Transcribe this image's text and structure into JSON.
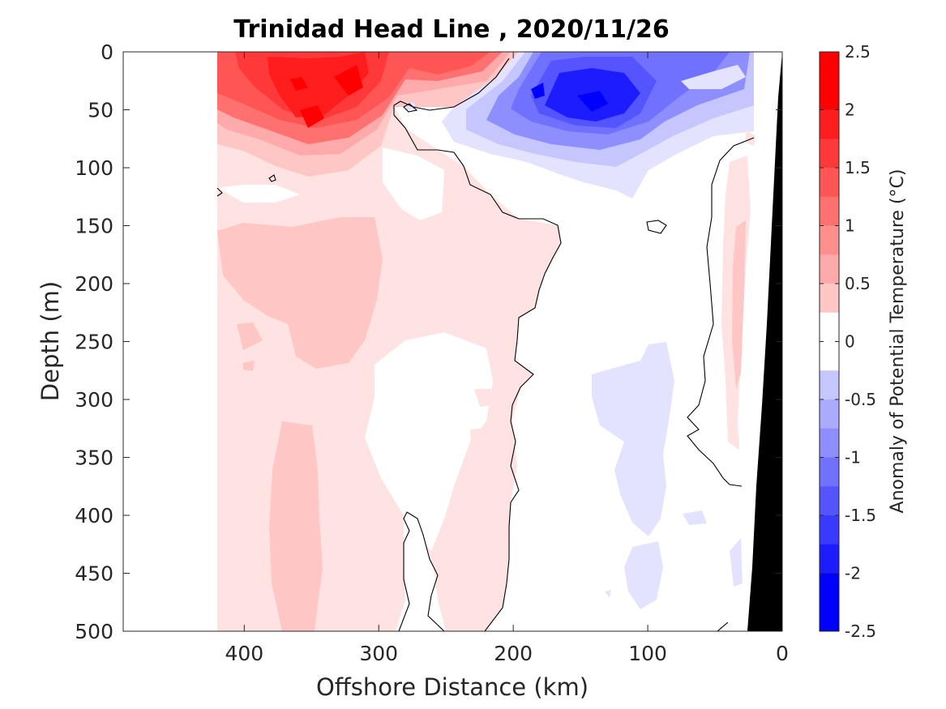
{
  "chart_data": {
    "type": "heatmap",
    "title": "Trinidad Head Line , 2020/11/26",
    "xlabel": "Offshore Distance (km)",
    "ylabel": "Depth (m)",
    "xlim": [
      490,
      0
    ],
    "ylim": [
      0,
      500
    ],
    "x_reversed": true,
    "y_reversed": true,
    "x_ticks": [
      "400",
      "300",
      "200",
      "100",
      "0"
    ],
    "x_tick_values": [
      400,
      300,
      200,
      100,
      0
    ],
    "y_ticks": [
      "0",
      "50",
      "100",
      "150",
      "200",
      "250",
      "300",
      "350",
      "400",
      "450",
      "500"
    ],
    "y_tick_values": [
      0,
      50,
      100,
      150,
      200,
      250,
      300,
      350,
      400,
      450,
      500
    ],
    "colorbar": {
      "label": "Anomaly of Potential Temperature (°C)",
      "range": [
        -2.5,
        2.5
      ],
      "step": 0.25,
      "ticks": [
        "2.5",
        "2",
        "1.5",
        "1",
        "0.5",
        "0",
        "-0.5",
        "-1",
        "-1.5",
        "-2",
        "-2.5"
      ],
      "tick_values": [
        2.5,
        2,
        1.5,
        1,
        0.5,
        0,
        -0.5,
        -1,
        -1.5,
        -2,
        -2.5
      ],
      "positive_color": "#ff0000",
      "negative_color": "#0000ff",
      "neutral_color": "#ffffff"
    },
    "data_extent_km": [
      420,
      20
    ],
    "features": [
      {
        "name": "warm-core",
        "x_range": [
          420,
          280
        ],
        "depth_range": [
          0,
          100
        ],
        "peak_anomaly": 2.25
      },
      {
        "name": "warm-surface-east",
        "x_range": [
          290,
          230
        ],
        "depth_range": [
          0,
          40
        ],
        "peak_anomaly": 1.75
      },
      {
        "name": "cold-core",
        "x_range": [
          210,
          20
        ],
        "depth_range": [
          0,
          110
        ],
        "peak_anomaly": -2.25
      },
      {
        "name": "warm-subsurface",
        "x_range": [
          420,
          220
        ],
        "depth_range": [
          100,
          500
        ],
        "peak_anomaly": 0.75
      },
      {
        "name": "cold-subsurface",
        "x_range": [
          160,
          90
        ],
        "depth_range": [
          250,
          490
        ],
        "peak_anomaly": -0.4
      },
      {
        "name": "nearshore-warm",
        "x_range": [
          50,
          25
        ],
        "depth_range": [
          90,
          380
        ],
        "peak_anomaly": 0.75
      }
    ],
    "grid": false
  }
}
